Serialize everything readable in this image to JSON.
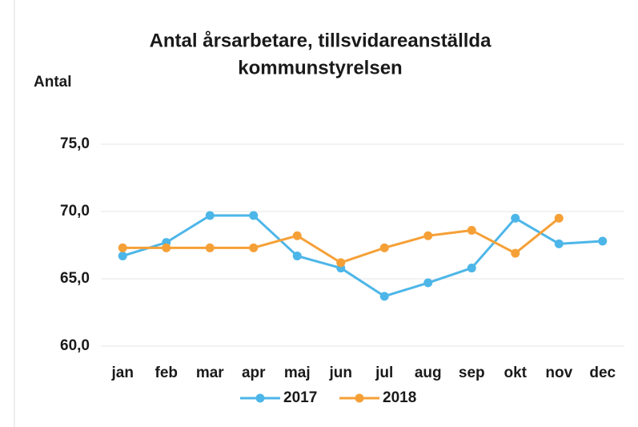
{
  "chart_data": {
    "type": "line",
    "title": [
      "Antal årsarbetare, tillsvidareanställda",
      "kommunstyrelsen"
    ],
    "y_label": "Antal",
    "categories": [
      "jan",
      "feb",
      "mar",
      "apr",
      "maj",
      "jun",
      "jul",
      "aug",
      "sep",
      "okt",
      "nov",
      "dec"
    ],
    "series": [
      {
        "name": "2017",
        "color": "#4db6e8",
        "values": [
          66.7,
          67.7,
          69.7,
          69.7,
          66.7,
          65.8,
          63.7,
          64.7,
          65.8,
          69.5,
          67.6,
          67.8
        ]
      },
      {
        "name": "2018",
        "color": "#f5a037",
        "values": [
          67.3,
          67.3,
          67.3,
          67.3,
          68.2,
          66.2,
          67.3,
          68.2,
          68.6,
          66.9,
          69.5,
          null
        ]
      }
    ],
    "ylim": [
      60,
      75
    ],
    "yticks": [
      {
        "value": 60,
        "label": "60,0"
      },
      {
        "value": 65,
        "label": "65,0"
      },
      {
        "value": 70,
        "label": "70,0"
      },
      {
        "value": 75,
        "label": "75,0"
      }
    ],
    "grid": true,
    "legend": "bottom"
  }
}
